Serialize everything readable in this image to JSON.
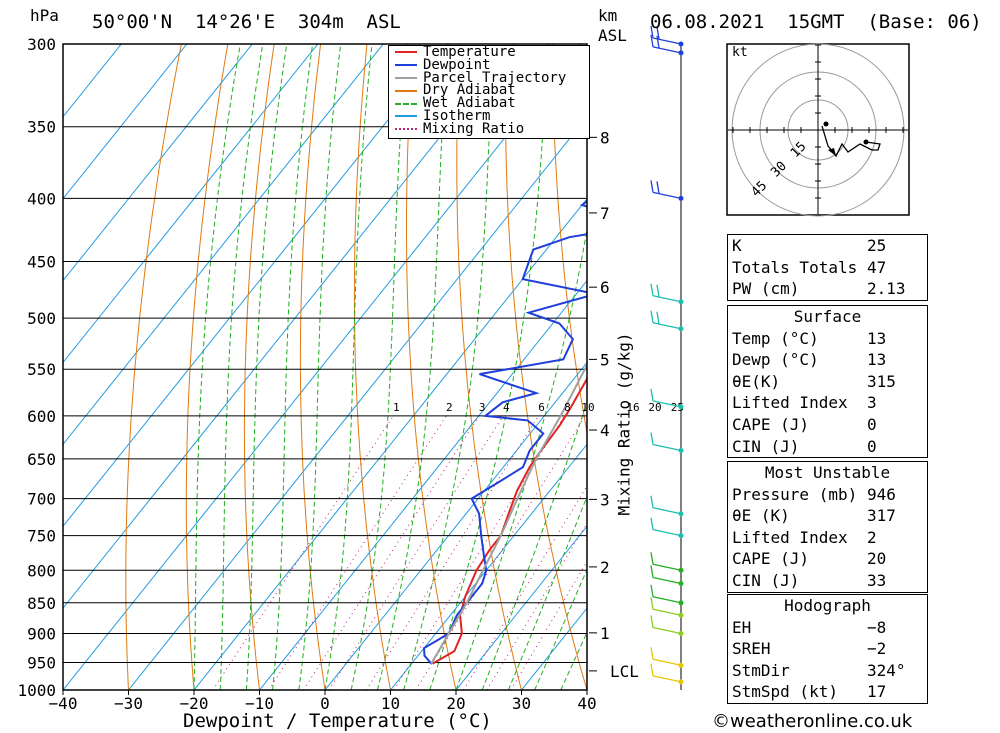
{
  "header": {
    "location": "50°00'N  14°26'E  304m  ASL",
    "datetime": "06.08.2021  15GMT  (Base: 06)",
    "hpa_label": "hPa",
    "km_label": "km",
    "asl_label": "ASL"
  },
  "legend": {
    "items": [
      {
        "label": "Temperature",
        "color": "#e32222",
        "style": "solid"
      },
      {
        "label": "Dewpoint",
        "color": "#1f3fdc",
        "style": "solid"
      },
      {
        "label": "Parcel Trajectory",
        "color": "#a0a0a0",
        "style": "solid"
      },
      {
        "label": "Dry Adiabat",
        "color": "#e07a10",
        "style": "solid"
      },
      {
        "label": "Wet Adiabat",
        "color": "#20b020",
        "style": "dashed"
      },
      {
        "label": "Isotherm",
        "color": "#1e9be0",
        "style": "solid"
      },
      {
        "label": "Mixing Ratio",
        "color": "#c0207a",
        "style": "dotted"
      }
    ]
  },
  "axes": {
    "xlabel": "Dewpoint / Temperature (°C)",
    "mixing_label": "Mixing Ratio (g/kg)",
    "lcl_label": "LCL",
    "hodo_unit": "kt",
    "pressure_ticks": [
      "300",
      "350",
      "400",
      "450",
      "500",
      "550",
      "600",
      "650",
      "700",
      "750",
      "800",
      "850",
      "900",
      "950",
      "1000"
    ],
    "temp_ticks": [
      "−40",
      "−30",
      "−20",
      "−10",
      "0",
      "10",
      "20",
      "30",
      "40"
    ],
    "km_ticks": [
      "8",
      "7",
      "6",
      "5",
      "4",
      "3",
      "2",
      "1"
    ],
    "mixing_ticks": [
      "1",
      "2",
      "3",
      "4",
      "6",
      "8",
      "10",
      "16",
      "20",
      "25"
    ],
    "hodo_rings": [
      "15",
      "30",
      "45"
    ]
  },
  "indices": {
    "K": "25",
    "Totals Totals": "47",
    "PW (cm)": "2.13"
  },
  "surface": {
    "title": "Surface",
    "Temp (°C)": "13",
    "Dewp (°C)": "13",
    "theta_e_label": "θE(K)",
    "theta_e": "315",
    "Lifted Index": "3",
    "CAPE (J)": "0",
    "CIN (J)": "0"
  },
  "most_unstable": {
    "title": "Most Unstable",
    "Pressure (mb)": "946",
    "theta_e_label": "θE (K)",
    "theta_e": "317",
    "Lifted Index": "2",
    "CAPE (J)": "20",
    "CIN (J)": "33"
  },
  "hodograph": {
    "title": "Hodograph",
    "EH": "−8",
    "SREH": "−2",
    "StmDir": "324°",
    "StmSpd (kt)": "17"
  },
  "footer": {
    "credit": "©weatheronline.co.uk"
  },
  "chart_data": {
    "type": "line",
    "title": "50°00'N 14°26'E 304m ASL — 06.08.2021 15GMT (Base: 06)",
    "xlabel": "Dewpoint / Temperature (°C)",
    "ylabel": "hPa",
    "xlim": [
      -40,
      40
    ],
    "ylim": [
      1000,
      300
    ],
    "y_scale": "log",
    "series": [
      {
        "name": "Temperature",
        "color": "#e32222",
        "points": [
          [
            13.2,
            952
          ],
          [
            15,
            930
          ],
          [
            14,
            900
          ],
          [
            11.5,
            870
          ],
          [
            10,
            840
          ],
          [
            8.5,
            800
          ],
          [
            8,
            770
          ],
          [
            8,
            750
          ],
          [
            6.5,
            720
          ],
          [
            5,
            690
          ],
          [
            4,
            660
          ],
          [
            3.8,
            645
          ],
          [
            3.5,
            610
          ],
          [
            3,
            590
          ],
          [
            2,
            560
          ],
          [
            0.5,
            540
          ],
          [
            -1,
            520
          ],
          [
            -2.5,
            500
          ],
          [
            -3.5,
            480
          ],
          [
            -4,
            465
          ],
          [
            -4.5,
            440
          ],
          [
            -5,
            420
          ],
          [
            -5.5,
            400
          ],
          [
            -6.5,
            380
          ],
          [
            -8,
            360
          ],
          [
            -10,
            340
          ],
          [
            -12,
            320
          ],
          [
            -14,
            305
          ],
          [
            -15,
            300
          ]
        ]
      },
      {
        "name": "Dewpoint",
        "color": "#1f3fdc",
        "points": [
          [
            13,
            952
          ],
          [
            11,
            938
          ],
          [
            10,
            925
          ],
          [
            12,
            900
          ],
          [
            11,
            870
          ],
          [
            11,
            850
          ],
          [
            11,
            820
          ],
          [
            10,
            800
          ],
          [
            8,
            780
          ],
          [
            5,
            750
          ],
          [
            2,
            720
          ],
          [
            -1,
            700
          ],
          [
            1,
            680
          ],
          [
            3,
            660
          ],
          [
            2,
            640
          ],
          [
            2,
            620
          ],
          [
            -2,
            605
          ],
          [
            -9,
            600
          ],
          [
            -8,
            585
          ],
          [
            -4,
            575
          ],
          [
            -15,
            555
          ],
          [
            -4,
            540
          ],
          [
            -5,
            520
          ],
          [
            -9,
            505
          ],
          [
            -15,
            495
          ],
          [
            -7,
            478
          ],
          [
            -20,
            465
          ],
          [
            -22,
            440
          ],
          [
            -18,
            430
          ],
          [
            -8,
            420
          ],
          [
            -20,
            405
          ],
          [
            -17,
            380
          ],
          [
            -18,
            340
          ],
          [
            -19,
            300
          ]
        ]
      },
      {
        "name": "Parcel Trajectory",
        "color": "#a0a0a0",
        "points": [
          [
            13,
            952
          ],
          [
            12,
            900
          ],
          [
            11,
            850
          ],
          [
            9.5,
            800
          ],
          [
            8,
            750
          ],
          [
            6,
            700
          ],
          [
            4,
            650
          ],
          [
            2.5,
            600
          ],
          [
            0.5,
            550
          ],
          [
            -2,
            500
          ],
          [
            -5,
            450
          ],
          [
            -9,
            400
          ],
          [
            -13,
            350
          ],
          [
            -18,
            300
          ]
        ]
      }
    ],
    "km_levels": [
      {
        "km": 8,
        "hPa": 357
      },
      {
        "km": 7,
        "hPa": 411
      },
      {
        "km": 6,
        "hPa": 472
      },
      {
        "km": 5,
        "hPa": 540
      },
      {
        "km": 4,
        "hPa": 616
      },
      {
        "km": 3,
        "hPa": 701
      },
      {
        "km": 2,
        "hPa": 795
      },
      {
        "km": 1,
        "hPa": 899
      }
    ],
    "lcl_hPa": 965,
    "mixing_ratios": [
      1,
      2,
      3,
      4,
      6,
      8,
      10,
      16,
      20,
      25
    ],
    "wind_levels_hPa": [
      300,
      305,
      400,
      485,
      510,
      590,
      640,
      720,
      750,
      800,
      820,
      850,
      870,
      900,
      955,
      985
    ],
    "hodograph": {
      "rings": [
        15,
        30,
        45
      ],
      "grid": true
    }
  }
}
